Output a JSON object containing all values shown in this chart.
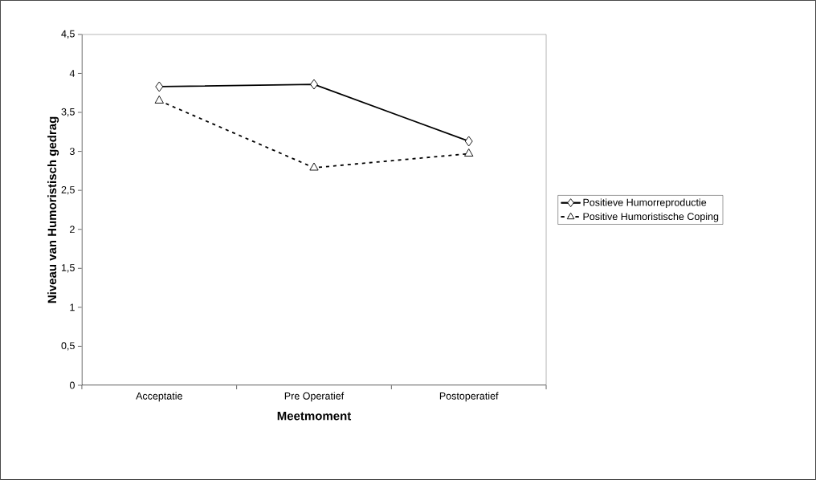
{
  "chart_data": {
    "type": "line",
    "xlabel": "Meetmoment",
    "ylabel": "Niveau van Humoristisch gedrag",
    "categories": [
      "Acceptatie",
      "Pre Operatief",
      "Postoperatief"
    ],
    "series": [
      {
        "name": "Positieve Humorreproductie",
        "color": "#000000",
        "marker": "diamond",
        "line_style": "solid",
        "values": [
          3.83,
          3.86,
          3.13
        ]
      },
      {
        "name": "Positive Humoristische Coping",
        "color": "#000000",
        "marker": "triangle",
        "line_style": "dashed",
        "values": [
          3.65,
          2.79,
          2.97
        ]
      }
    ],
    "ylim": [
      0,
      4.5
    ],
    "yticks": [
      0,
      {
        "value": 0.5,
        "label": "0,5"
      },
      1,
      {
        "value": 1.5,
        "label": "1,5"
      },
      2,
      {
        "value": 2.5,
        "label": "2,5"
      },
      3,
      {
        "value": 3.5,
        "label": "3,5"
      },
      4,
      {
        "value": 4.5,
        "label": "4,5"
      }
    ],
    "legend": "right"
  }
}
